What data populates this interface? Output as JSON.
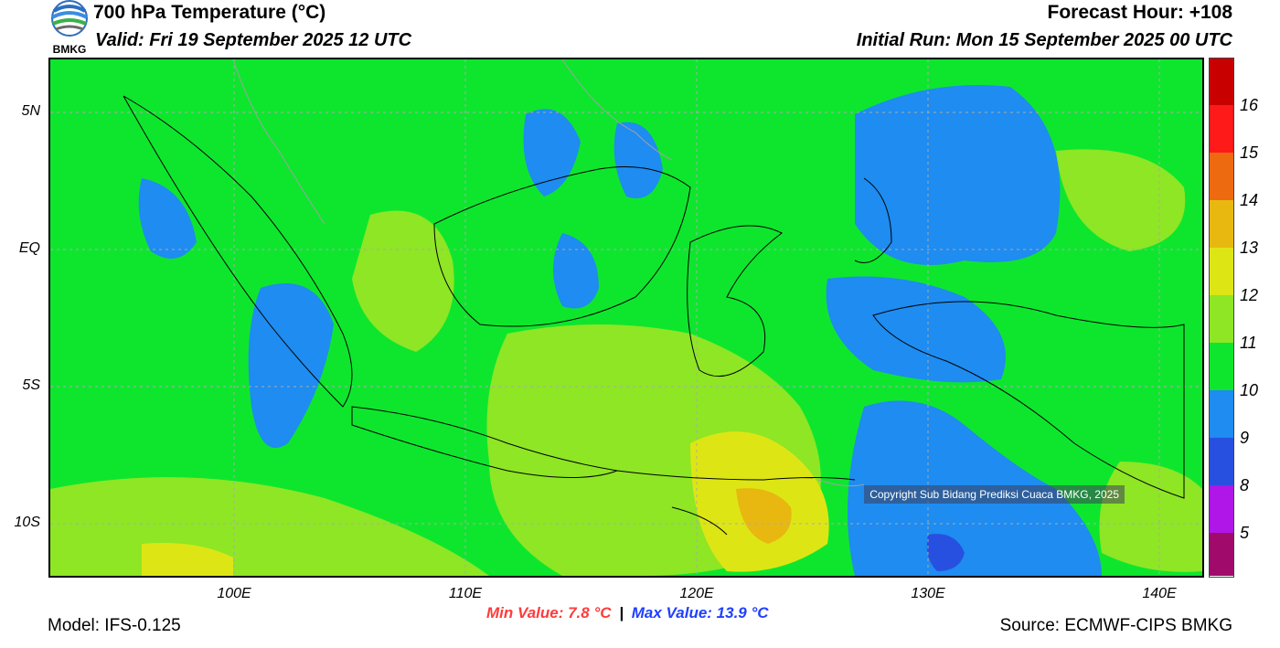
{
  "header": {
    "title": "700 hPa Temperature (°C)",
    "valid": "Valid: Fri 19 September 2025 12 UTC",
    "forecast_hour": "Forecast Hour: +108",
    "initial_run": "Initial Run: Mon 15 September 2025 00 UTC",
    "logo_text": "BMKG"
  },
  "map": {
    "lat_labels": [
      "5N",
      "EQ",
      "5S",
      "10S"
    ],
    "lon_labels": [
      "100E",
      "110E",
      "120E",
      "130E",
      "140E"
    ],
    "copyright": "Copyright Sub Bidang Prediksi Cuaca BMKG, 2025"
  },
  "colorbar": {
    "labels": [
      "16",
      "15",
      "14",
      "13",
      "12",
      "11",
      "10",
      "9",
      "8",
      "5"
    ],
    "colors": [
      "#c80000",
      "#ff1a1a",
      "#ee6a10",
      "#e8b810",
      "#dde614",
      "#8ee624",
      "#0ee62e",
      "#1e8cf0",
      "#2850e0",
      "#b016e8",
      "#a00a6a"
    ]
  },
  "stats": {
    "min": "Min Value: 7.8 °C",
    "sep": "|",
    "max": "Max Value: 13.9 °C"
  },
  "footer": {
    "model": "Model: IFS-0.125",
    "source": "Source: ECMWF-CIPS BMKG"
  }
}
